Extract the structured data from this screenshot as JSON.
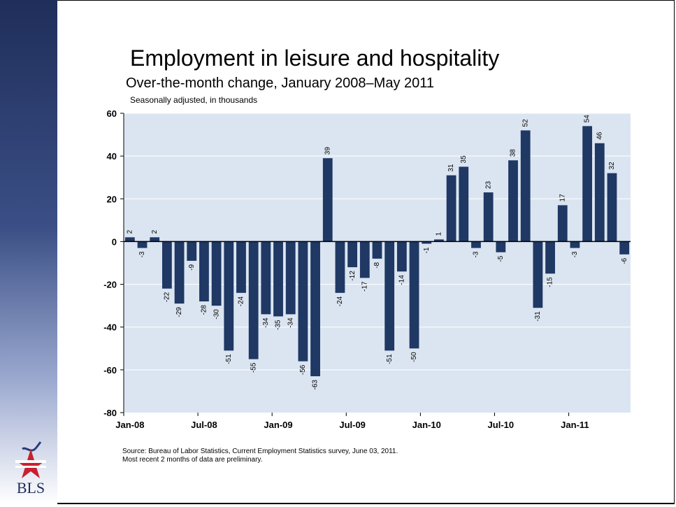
{
  "slide": {
    "title": "Employment in leisure and hospitality",
    "subtitle": "Over-the-month change, January 2008–May 2011",
    "note": "Seasonally adjusted, in thousands",
    "source_line1": "Source: Bureau of Labor Statistics, Current Employment Statistics survey, June 03, 2011.",
    "source_line2": "Most recent 2 months of data are preliminary.",
    "logo_text": "BLS"
  },
  "colors": {
    "bar": "#1f3864",
    "plot_bg": "#dbe5f1",
    "grid": "#ffffff"
  },
  "chart_data": {
    "type": "bar",
    "title": "Employment in leisure and hospitality",
    "subtitle": "Over-the-month change, January 2008–May 2011",
    "ylabel": "Seasonally adjusted, in thousands",
    "ylim": [
      -80,
      60
    ],
    "yticks": [
      60,
      40,
      20,
      0,
      -20,
      -40,
      -60,
      -80
    ],
    "grid": true,
    "x_tick_labels": [
      "Jan-08",
      "Jul-08",
      "Jan-09",
      "Jul-09",
      "Jan-10",
      "Jul-10",
      "Jan-11"
    ],
    "x_tick_positions": [
      0,
      6,
      12,
      18,
      24,
      30,
      36
    ],
    "categories": [
      "Jan-08",
      "Feb-08",
      "Mar-08",
      "Apr-08",
      "May-08",
      "Jun-08",
      "Jul-08",
      "Aug-08",
      "Sep-08",
      "Oct-08",
      "Nov-08",
      "Dec-08",
      "Jan-09",
      "Feb-09",
      "Mar-09",
      "Apr-09",
      "May-09",
      "Jun-09",
      "Jul-09",
      "Aug-09",
      "Sep-09",
      "Oct-09",
      "Nov-09",
      "Dec-09",
      "Jan-10",
      "Feb-10",
      "Mar-10",
      "Apr-10",
      "May-10",
      "Jun-10",
      "Jul-10",
      "Aug-10",
      "Sep-10",
      "Oct-10",
      "Nov-10",
      "Dec-10",
      "Jan-11",
      "Feb-11",
      "Mar-11",
      "Apr-11",
      "May-11"
    ],
    "values": [
      2,
      -3,
      2,
      -22,
      -29,
      -9,
      -28,
      -30,
      -51,
      -24,
      -55,
      -34,
      -35,
      -34,
      -56,
      -63,
      39,
      -24,
      -12,
      -17,
      -8,
      -51,
      -14,
      -50,
      -1,
      1,
      31,
      35,
      -3,
      23,
      -5,
      38,
      52,
      -31,
      -15,
      17,
      -3,
      54,
      46,
      32,
      -6
    ]
  }
}
